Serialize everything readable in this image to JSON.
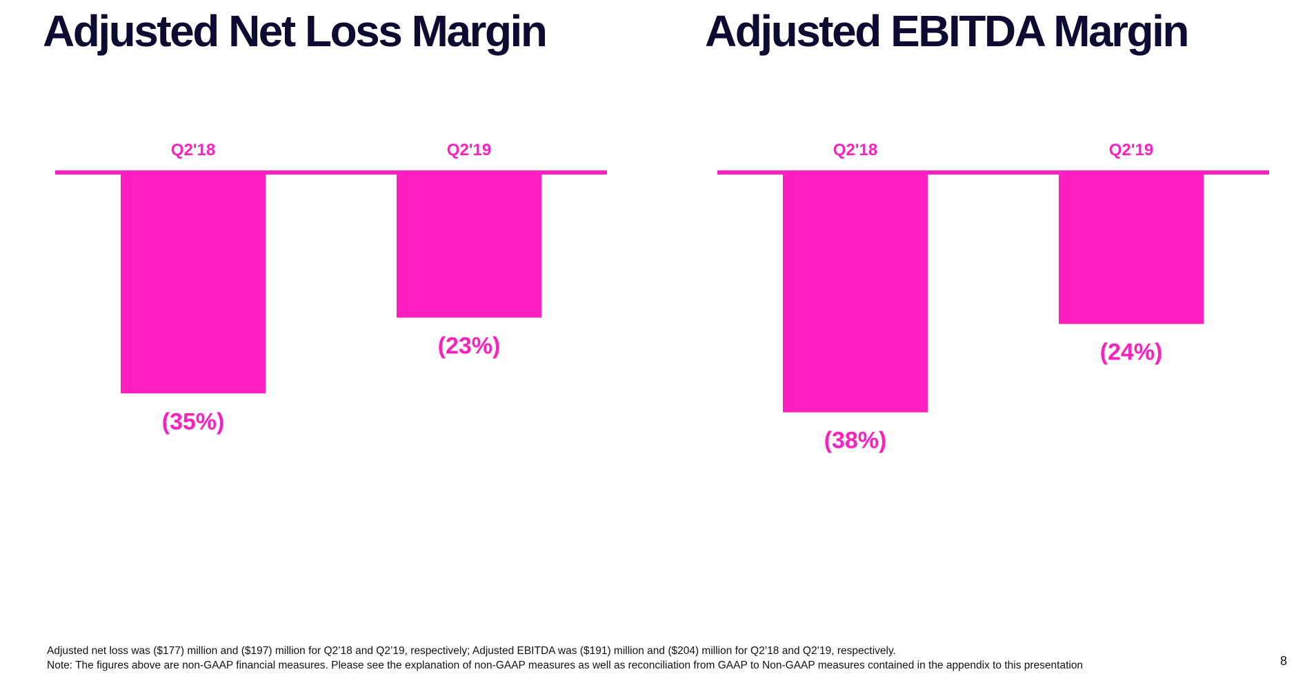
{
  "colors": {
    "accent": "#FF1FBF",
    "text": "#0C0B31",
    "background": "#FFFFFF"
  },
  "chart_data": [
    {
      "type": "bar",
      "title": "Adjusted Net Loss Margin",
      "categories": [
        "Q2'18",
        "Q2'19"
      ],
      "values": [
        -35,
        -23
      ],
      "value_labels": [
        "(35%)",
        "(23%)"
      ],
      "ylim": [
        -40,
        0
      ],
      "unit": "%",
      "grid": false,
      "legend": "none",
      "category_axis_position": "top"
    },
    {
      "type": "bar",
      "title": "Adjusted EBITDA Margin",
      "categories": [
        "Q2'18",
        "Q2'19"
      ],
      "values": [
        -38,
        -24
      ],
      "value_labels": [
        "(38%)",
        "(24%)"
      ],
      "ylim": [
        -40,
        0
      ],
      "unit": "%",
      "grid": false,
      "legend": "none",
      "category_axis_position": "top"
    }
  ],
  "footnote": {
    "line1": "Adjusted net loss was ($177) million and ($197) million for Q2’18 and Q2’19, respectively; Adjusted EBITDA was ($191) million and ($204) million for Q2’18 and Q2’19, respectively.",
    "line2": "Note: The figures above are non-GAAP financial measures.  Please see the explanation of non-GAAP measures as well as reconciliation from GAAP to Non-GAAP measures contained in the appendix to this presentation"
  },
  "page_number": "8"
}
